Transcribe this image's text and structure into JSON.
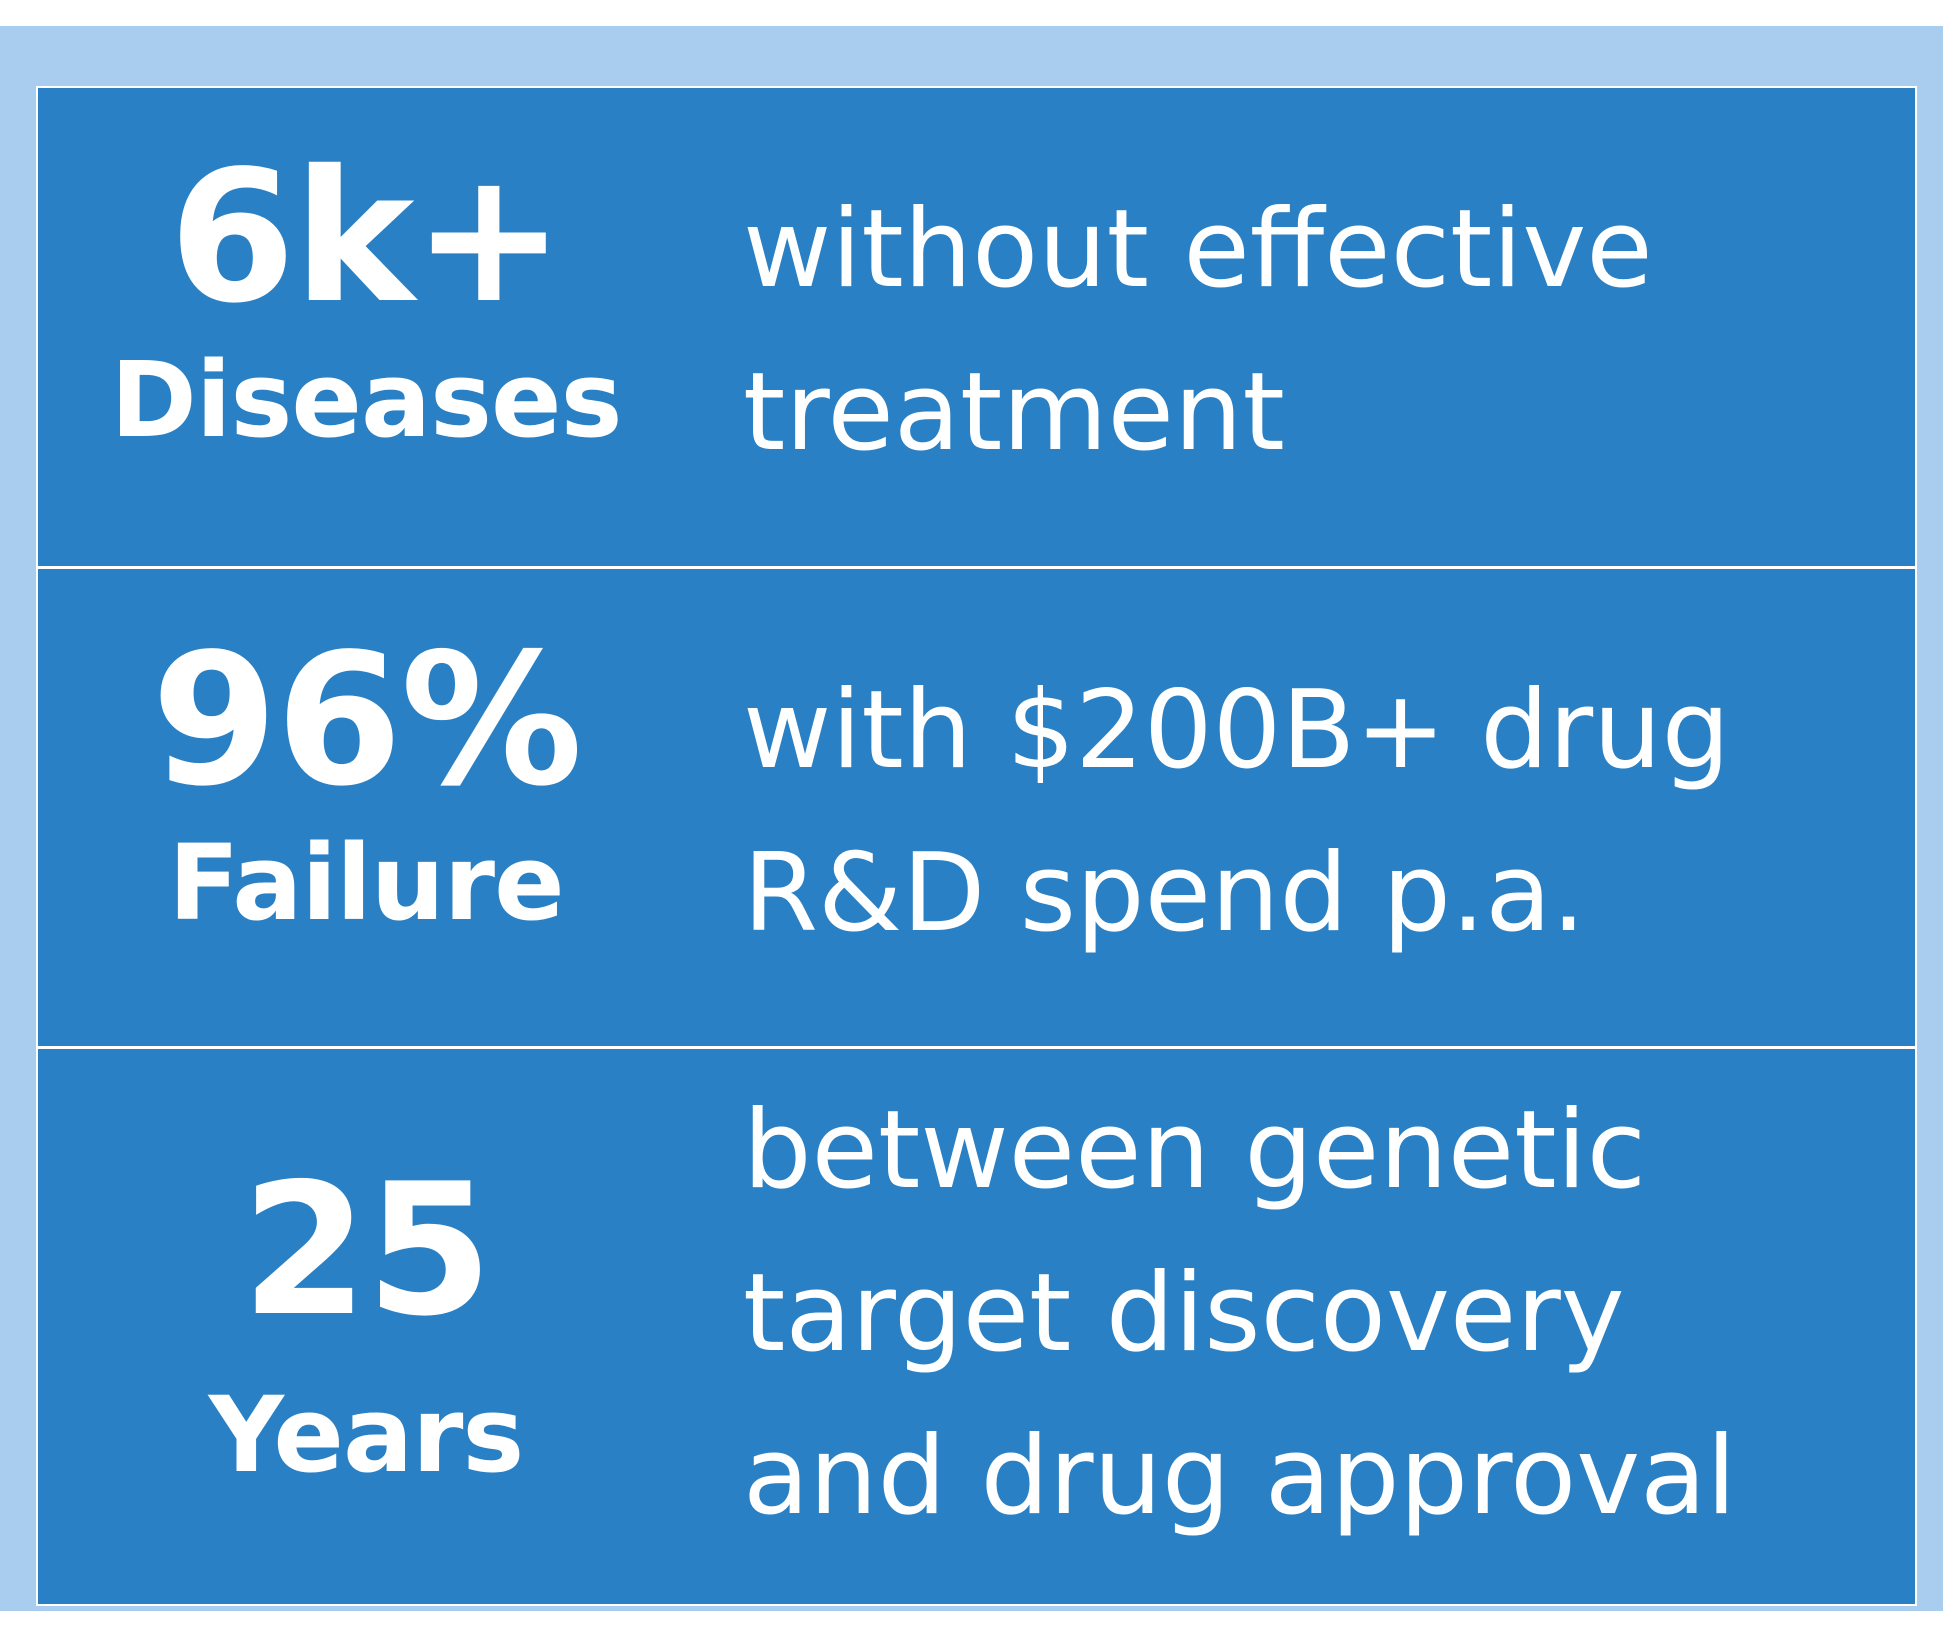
{
  "rows": [
    {
      "stat": "6k+",
      "unit": "Diseases",
      "lines": [
        "without effective",
        "treatment"
      ]
    },
    {
      "stat": "96%",
      "unit": "Failure",
      "lines": [
        "with $200B+ drug",
        "R&D spend p.a."
      ]
    },
    {
      "stat": "25",
      "unit": "Years",
      "lines": [
        "between genetic",
        "target discovery",
        "and drug approval"
      ]
    }
  ],
  "colors": {
    "panel": "#2a80c4",
    "frame": "#a9cdef",
    "text": "#ffffff"
  }
}
